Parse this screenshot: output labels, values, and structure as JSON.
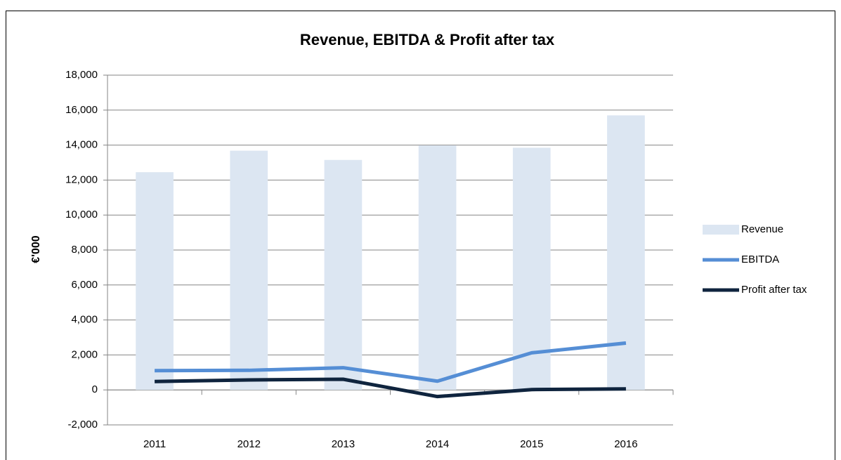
{
  "chart_data": {
    "type": "combo",
    "title": "Revenue, EBITDA & Profit after tax",
    "y_label": "€'000",
    "categories": [
      "2011",
      "2012",
      "2013",
      "2014",
      "2015",
      "2016"
    ],
    "series": [
      {
        "name": "Revenue",
        "type": "bar",
        "color": "#dce6f2",
        "values": [
          12450,
          13680,
          13150,
          13980,
          13850,
          15700
        ]
      },
      {
        "name": "EBITDA",
        "type": "line",
        "color": "#558ed5",
        "values": [
          1100,
          1120,
          1270,
          500,
          2120,
          2680
        ]
      },
      {
        "name": "Profit after tax",
        "type": "line",
        "color": "#0f243e",
        "values": [
          480,
          570,
          610,
          -380,
          20,
          60
        ]
      }
    ],
    "ylim": [
      -2000,
      18000
    ],
    "yticks": [
      {
        "value": -2000,
        "label": "-2,000"
      },
      0,
      {
        "value": 2000,
        "label": "2,000"
      },
      {
        "value": 4000,
        "label": "4,000"
      },
      {
        "value": 6000,
        "label": "6,000"
      },
      {
        "value": 8000,
        "label": "8,000"
      },
      {
        "value": 10000,
        "label": "10,000"
      },
      {
        "value": 12000,
        "label": "12,000"
      },
      {
        "value": 14000,
        "label": "14,000"
      },
      {
        "value": 16000,
        "label": "16,000"
      },
      {
        "value": 18000,
        "label": "18,000"
      }
    ],
    "grid": true,
    "legend": "right"
  }
}
